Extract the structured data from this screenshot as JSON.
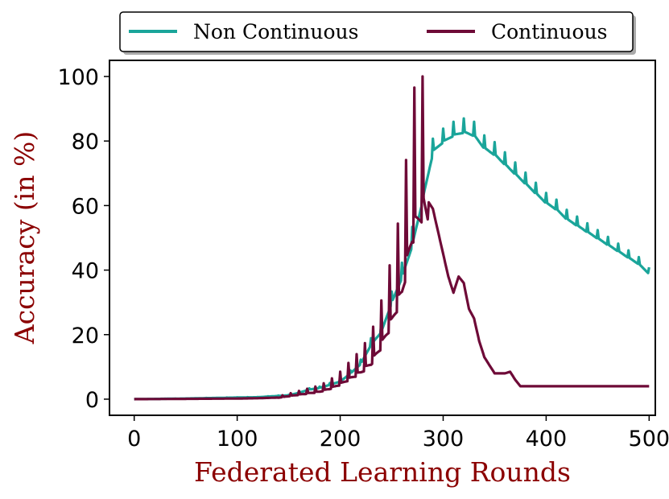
{
  "chart_data": {
    "type": "line",
    "xlabel": "Federated Learning Rounds",
    "ylabel": "Accuracy (in %)",
    "xlim": [
      -24,
      506
    ],
    "ylim": [
      -5,
      105
    ],
    "xticks": [
      0,
      100,
      200,
      300,
      400,
      500
    ],
    "yticks": [
      0,
      20,
      40,
      60,
      80,
      100
    ],
    "grid": false,
    "legend_position": "top-center-outside",
    "series": [
      {
        "name": "Non Continuous",
        "color": "#1aa59a",
        "sawtooth": true,
        "x": [
          0,
          50,
          100,
          120,
          130,
          140,
          150,
          160,
          170,
          180,
          190,
          200,
          210,
          220,
          230,
          240,
          250,
          260,
          270,
          280,
          290,
          300,
          310,
          320,
          330,
          340,
          350,
          360,
          370,
          380,
          390,
          400,
          410,
          420,
          430,
          440,
          450,
          460,
          470,
          480,
          490,
          500
        ],
        "y": [
          0,
          0.2,
          0.5,
          0.6,
          0.8,
          1,
          1.2,
          2,
          3,
          3.5,
          4.5,
          5.5,
          8,
          11,
          17,
          21,
          30,
          38,
          48,
          62,
          77,
          80,
          82,
          83,
          82,
          78,
          76,
          73,
          70,
          67,
          64,
          61,
          59,
          56,
          54,
          52,
          50,
          48,
          46,
          44,
          42,
          39
        ]
      },
      {
        "name": "Continuous",
        "color": "#6e0a37",
        "sawtooth": true,
        "x": [
          0,
          50,
          100,
          120,
          140,
          150,
          160,
          170,
          180,
          190,
          200,
          210,
          220,
          230,
          240,
          250,
          260,
          270,
          280,
          290,
          300,
          305,
          310,
          315,
          320,
          325,
          330,
          335,
          340,
          350,
          360,
          365,
          370,
          375,
          380,
          390,
          400,
          450,
          500
        ],
        "y": [
          0,
          0.1,
          0.2,
          0.3,
          0.5,
          1,
          1.5,
          2,
          2.5,
          3.5,
          5,
          7,
          9,
          12,
          18,
          26,
          36,
          55,
          64,
          59,
          45,
          38,
          33,
          38,
          36,
          28,
          25,
          18,
          13,
          8,
          8,
          8.5,
          6,
          4,
          4,
          4,
          4,
          4,
          4
        ]
      }
    ]
  }
}
